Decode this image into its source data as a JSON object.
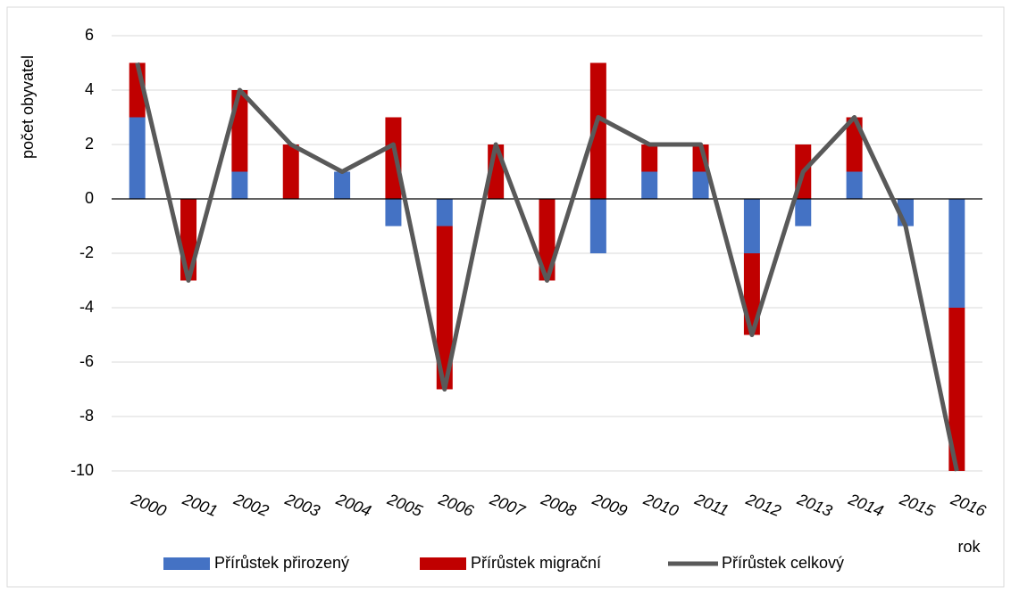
{
  "chart_data": {
    "type": "bar",
    "stacked": true,
    "xlabel": "rok",
    "ylabel": "počet obyvatel",
    "categories": [
      "2000",
      "2001",
      "2002",
      "2003",
      "2004",
      "2005",
      "2006",
      "2007",
      "2008",
      "2009",
      "2010",
      "2011",
      "2012",
      "2013",
      "2014",
      "2015",
      "2016"
    ],
    "series": [
      {
        "name": "Přírůstek přirozený",
        "type": "bar",
        "color": "#4472c4",
        "values": [
          3,
          0,
          1,
          0,
          1,
          -1,
          -1,
          0,
          0,
          -2,
          1,
          1,
          -2,
          -1,
          1,
          -1,
          -4
        ]
      },
      {
        "name": "Přírůstek migrační",
        "type": "bar",
        "color": "#c00000",
        "values": [
          2,
          -3,
          3,
          2,
          0,
          3,
          -6,
          2,
          -3,
          5,
          1,
          1,
          -3,
          2,
          2,
          0,
          -6
        ]
      },
      {
        "name": "Přírůstek celkový",
        "type": "line",
        "color": "#595959",
        "values": [
          5,
          -3,
          4,
          2,
          1,
          2,
          -7,
          2,
          -3,
          3,
          2,
          2,
          -5,
          1,
          3,
          -1,
          -10
        ]
      }
    ],
    "ylim": [
      -10,
      6
    ],
    "yticks": [
      -10,
      -8,
      -6,
      -4,
      -2,
      0,
      2,
      4,
      6
    ],
    "grid": true,
    "legend": "bottom"
  }
}
